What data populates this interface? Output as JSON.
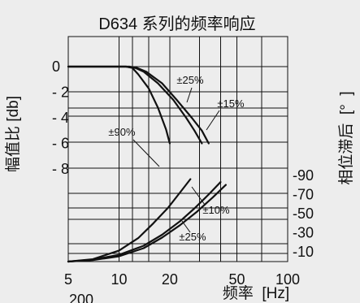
{
  "chart_data": {
    "type": "line",
    "title": "D634 系列的频率响应",
    "xlabel": "频率  [Hz]",
    "ylabel_left": "幅值比 [db]",
    "ylabel_right": "相位滞后  [°  ]",
    "x_scale": "log",
    "xlim": [
      5,
      100
    ],
    "x_ticks": [
      5,
      10,
      20,
      50,
      100
    ],
    "x_tick_labels": [
      "5",
      "10",
      "20",
      "50",
      "100"
    ],
    "x_extra_label": "200",
    "y_left_ticks": [
      0,
      -2,
      -4,
      -6,
      -8
    ],
    "y_left_tick_labels": [
      "0",
      "- 2",
      "- 4",
      "- 6",
      "- 8"
    ],
    "y_right_ticks": [
      90,
      70,
      50,
      30,
      10
    ],
    "y_right_tick_labels": [
      "-90",
      "-70",
      "-50",
      "-30",
      "-10"
    ],
    "grid": true,
    "annotations": [
      "±25%",
      "±15%",
      "±90%",
      "±10%",
      "±25%"
    ],
    "series": [
      {
        "label": "±90%",
        "axis": "amplitude",
        "x": [
          5,
          11,
          12,
          13,
          15,
          17,
          19,
          20
        ],
        "y": [
          0,
          0,
          -0.1,
          -0.6,
          -1.7,
          -3.2,
          -4.9,
          -6
        ]
      },
      {
        "label": "±25%",
        "axis": "amplitude",
        "x": [
          5,
          11,
          12.5,
          14,
          17,
          21,
          25,
          28,
          31
        ],
        "y": [
          0,
          0,
          -0.1,
          -0.4,
          -1.3,
          -2.6,
          -4,
          -5,
          -6
        ]
      },
      {
        "label": "±15%",
        "axis": "amplitude",
        "x": [
          5,
          11.5,
          12.8,
          14.5,
          18,
          22,
          27,
          31,
          34
        ],
        "y": [
          0,
          0,
          -0.1,
          -0.4,
          -1.3,
          -2.6,
          -4,
          -5,
          -6
        ]
      },
      {
        "label": "±90%",
        "axis": "phase",
        "x": [
          5,
          7,
          10,
          13,
          16,
          19.5,
          23,
          26.5
        ],
        "y": [
          0,
          2.5,
          11.5,
          24.5,
          40,
          56,
          72,
          86
        ]
      },
      {
        "label": "±10%",
        "axis": "phase",
        "x": [
          5,
          7,
          10,
          14,
          18,
          23,
          28,
          34,
          40
        ],
        "y": [
          0,
          2,
          7,
          16.5,
          28,
          42,
          55.5,
          70,
          83
        ]
      },
      {
        "label": "±25%",
        "axis": "phase",
        "x": [
          5,
          7,
          10,
          14,
          18,
          23,
          29,
          36,
          43
        ],
        "y": [
          0,
          1.5,
          5.5,
          14,
          25,
          38,
          52,
          67,
          80
        ]
      }
    ]
  }
}
